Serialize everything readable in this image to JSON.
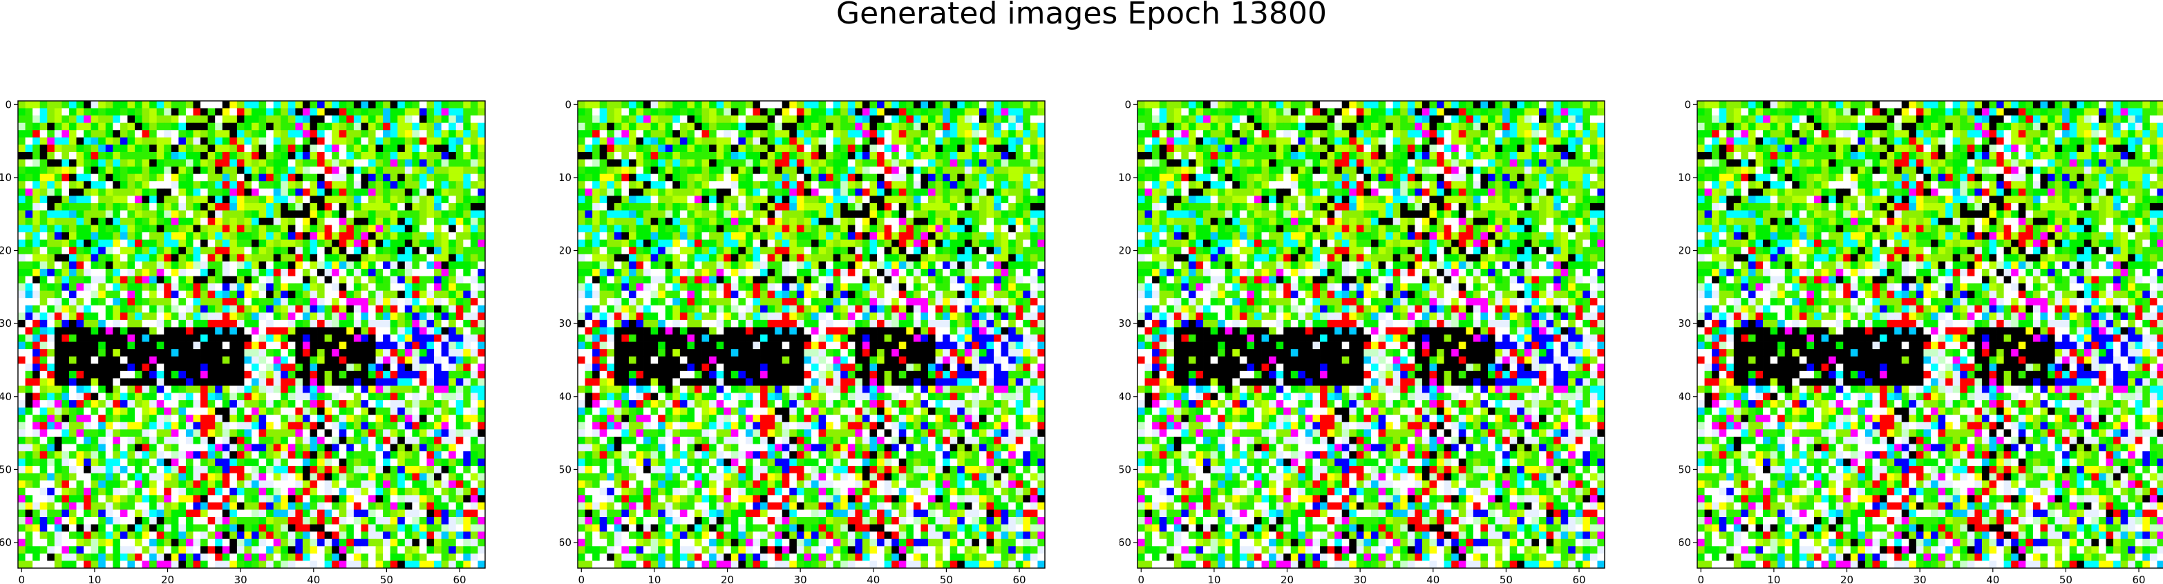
{
  "figure": {
    "title": "Generated images Epoch 13800"
  },
  "chart_data": [
    {
      "type": "heatmap",
      "title": "",
      "xlabel": "",
      "ylabel": "",
      "grid_size": [
        64,
        64
      ],
      "xlim": [
        -0.5,
        63.5
      ],
      "ylim": [
        63.5,
        -0.5
      ],
      "xticks": [
        "0",
        "10",
        "20",
        "30",
        "40",
        "50",
        "60"
      ],
      "yticks": [
        "0",
        "10",
        "20",
        "30",
        "40",
        "50",
        "60"
      ],
      "grid": false,
      "palette": [
        "#8df000",
        "#2ff000",
        "#b7ff00",
        "#00f000",
        "#ffffff",
        "#00ffff",
        "#0000ff",
        "#ff0000",
        "#ff00ff",
        "#ffff00",
        "#000000",
        "#e7f0ff",
        "#00c8ff",
        "#c8ffc8"
      ]
    },
    {
      "type": "heatmap",
      "title": "",
      "xlabel": "",
      "ylabel": "",
      "grid_size": [
        64,
        64
      ],
      "xlim": [
        -0.5,
        63.5
      ],
      "ylim": [
        63.5,
        -0.5
      ],
      "xticks": [
        "0",
        "10",
        "20",
        "30",
        "40",
        "50",
        "60"
      ],
      "yticks": [
        "0",
        "10",
        "20",
        "30",
        "40",
        "50",
        "60"
      ],
      "grid": false,
      "palette": [
        "#8df000",
        "#2ff000",
        "#b7ff00",
        "#00f000",
        "#ffffff",
        "#00ffff",
        "#0000ff",
        "#ff0000",
        "#ff00ff",
        "#ffff00",
        "#000000",
        "#e7f0ff",
        "#00c8ff",
        "#c8ffc8"
      ]
    },
    {
      "type": "heatmap",
      "title": "",
      "xlabel": "",
      "ylabel": "",
      "grid_size": [
        64,
        64
      ],
      "xlim": [
        -0.5,
        63.5
      ],
      "ylim": [
        63.5,
        -0.5
      ],
      "xticks": [
        "0",
        "10",
        "20",
        "30",
        "40",
        "50",
        "60"
      ],
      "yticks": [
        "0",
        "10",
        "20",
        "30",
        "40",
        "50",
        "60"
      ],
      "grid": false,
      "palette": [
        "#8df000",
        "#2ff000",
        "#b7ff00",
        "#00f000",
        "#ffffff",
        "#00ffff",
        "#0000ff",
        "#ff0000",
        "#ff00ff",
        "#ffff00",
        "#000000",
        "#e7f0ff",
        "#00c8ff",
        "#c8ffc8"
      ]
    },
    {
      "type": "heatmap",
      "title": "",
      "xlabel": "",
      "ylabel": "",
      "grid_size": [
        64,
        64
      ],
      "xlim": [
        -0.5,
        63.5
      ],
      "ylim": [
        63.5,
        -0.5
      ],
      "xticks": [
        "0",
        "10",
        "20",
        "30",
        "40",
        "50",
        "60"
      ],
      "yticks": [
        "0",
        "10",
        "20",
        "30",
        "40",
        "50",
        "60"
      ],
      "grid": false,
      "palette": [
        "#8df000",
        "#2ff000",
        "#b7ff00",
        "#00f000",
        "#ffffff",
        "#00ffff",
        "#0000ff",
        "#ff0000",
        "#ff00ff",
        "#ffff00",
        "#000000",
        "#e7f0ff",
        "#00c8ff",
        "#c8ffc8"
      ]
    }
  ]
}
